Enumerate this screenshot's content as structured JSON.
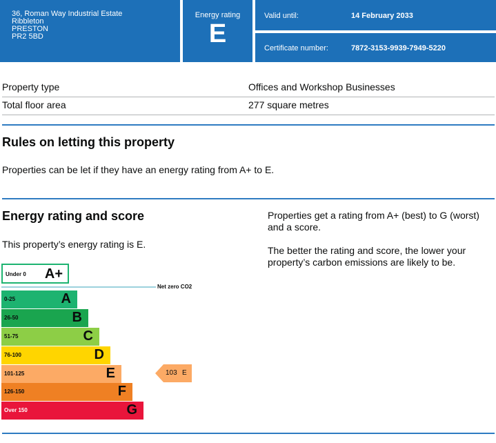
{
  "header": {
    "address_lines": [
      "36, Roman Way Industrial Estate",
      "Ribbleton",
      "PRESTON",
      "PR2 5BD"
    ],
    "energy_rating_label": "Energy rating",
    "energy_rating": "E",
    "valid_until_label": "Valid until:",
    "valid_until": "14 February 2033",
    "certificate_number_label": "Certificate number:",
    "certificate_number": "7872-3153-9939-7949-5220"
  },
  "property": {
    "rows": [
      {
        "label": "Property type",
        "value": "Offices and Workshop Businesses"
      },
      {
        "label": "Total floor area",
        "value": "277 square metres"
      }
    ]
  },
  "letting": {
    "heading": "Rules on letting this property",
    "text": "Properties can be let if they have an energy rating from A+ to E."
  },
  "rating_section": {
    "heading": "Energy rating and score",
    "intro": "This property’s energy rating is E.",
    "side_text_1": "Properties get a rating from A+ (best) to G (worst) and a score.",
    "side_text_2": "The better the rating and score, the lower your property’s carbon emissions are likely to be."
  },
  "chart": {
    "aplus": {
      "range": "Under 0",
      "letter": "A+"
    },
    "net_zero_label": "Net zero CO2",
    "bands": [
      {
        "range": "0-25",
        "letter": "A",
        "color": "#1db370"
      },
      {
        "range": "26-50",
        "letter": "B",
        "color": "#1aa54f"
      },
      {
        "range": "51-75",
        "letter": "C",
        "color": "#8dce46"
      },
      {
        "range": "76-100",
        "letter": "D",
        "color": "#ffd500"
      },
      {
        "range": "101-125",
        "letter": "E",
        "color": "#fcaa65"
      },
      {
        "range": "126-150",
        "letter": "F",
        "color": "#ef8023"
      },
      {
        "range": "Over 150",
        "letter": "G",
        "color": "#e9153b"
      }
    ],
    "current": {
      "score": "103",
      "rating": "E",
      "color": "#fcaa65"
    }
  }
}
